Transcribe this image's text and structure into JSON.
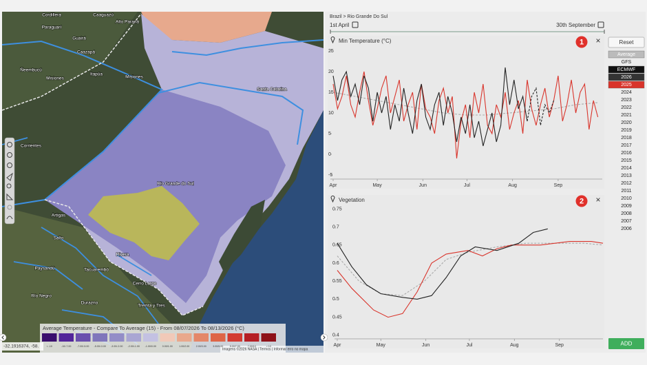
{
  "map": {
    "places": [
      "Cordillera",
      "Caaguazú",
      "Alto Paraná",
      "Paraguarí",
      "Guairá",
      "Caazapá",
      "Ñeembucú",
      "Misiones",
      "Itapúa",
      "Misiones",
      "Santa Catarina",
      "Corrientes",
      "Rio Grande do Sul",
      "Artigas",
      "Salto",
      "Rivera",
      "Paysandú",
      "Tacuarembó",
      "Cerro Largo",
      "Río Negro",
      "Durazno",
      "Treinta y Tres"
    ],
    "legend": {
      "title": "Average Temperature - Compare To Average (15) - From 08/07/2026 To 08/13/2026 (°C)",
      "bins": [
        "< -10",
        "-10/-7.00",
        "-7.00/-5.00",
        "-5.00/-3.00",
        "-3.00/-2.00",
        "-2.00/-1.00",
        "-1.00/0.00",
        "0.00/1.00",
        "1.00/2.00",
        "2.00/3.00",
        "3.00/5.00",
        "5.00/7.00",
        "7.00/10",
        "> 10"
      ],
      "colors": [
        "#3a0f6e",
        "#52259a",
        "#6a4fae",
        "#8076bb",
        "#938dc7",
        "#a9a6d3",
        "#c3c1e2",
        "#f1c9b8",
        "#e9a88c",
        "#e48769",
        "#de6548",
        "#d33a31",
        "#b51e25",
        "#8e1119"
      ]
    },
    "coordinates": "-32.1916374, -58.",
    "attribution": "Imagens ©2026 NASA | Termos | Informar erro no mapa"
  },
  "panel": {
    "breadcrumb": "Brazil > Rio Grande Do Sul",
    "start_date": "1st April",
    "end_date": "30th September",
    "close": "×"
  },
  "charts": [
    {
      "type": "line",
      "title": "Min Temperature (°C)",
      "marker": 1,
      "xlim": [
        0,
        183
      ],
      "xticks": [
        {
          "value": 0,
          "label": "Apr"
        },
        {
          "value": 30,
          "label": "May"
        },
        {
          "value": 61,
          "label": "Jun"
        },
        {
          "value": 91,
          "label": "Jul"
        },
        {
          "value": 122,
          "label": "Aug"
        },
        {
          "value": 153,
          "label": "Sep"
        }
      ],
      "ylim": [
        -6,
        27
      ],
      "yticks": [
        -5,
        0,
        5,
        10,
        15,
        20,
        25
      ],
      "series": [
        {
          "color": "#aaaaaa",
          "dash": true,
          "x": [
            0,
            15,
            30,
            45,
            60,
            75,
            90,
            105,
            120,
            135,
            150,
            165,
            180
          ],
          "values": [
            15,
            14,
            13,
            12,
            11,
            10,
            9.5,
            9.5,
            10,
            10.5,
            11,
            12,
            12.5
          ]
        },
        {
          "color": "#d9342b",
          "dash": false,
          "x": [
            0,
            3,
            6,
            9,
            12,
            15,
            18,
            21,
            24,
            27,
            30,
            33,
            36,
            39,
            42,
            45,
            48,
            51,
            54,
            57,
            60,
            63,
            66,
            69,
            72,
            75,
            78,
            81,
            84,
            87,
            90,
            93,
            96,
            99,
            102,
            105,
            108,
            111,
            114,
            117,
            120,
            123,
            126,
            129,
            132,
            135,
            138,
            141,
            144,
            147,
            150,
            153,
            156,
            159,
            162,
            165,
            168,
            171,
            174,
            177,
            180
          ],
          "values": [
            17,
            11,
            14,
            19,
            12,
            9,
            15,
            20,
            13,
            7,
            11,
            16,
            19,
            10,
            14,
            18,
            8,
            12,
            15,
            6,
            17,
            11,
            9,
            5,
            13,
            16,
            10,
            14,
            -1,
            8,
            12,
            4,
            15,
            10,
            17,
            7,
            5,
            12,
            9,
            15,
            6,
            10,
            13,
            5,
            18,
            11,
            7,
            12,
            16,
            9,
            13,
            19,
            8,
            12,
            18,
            10,
            15,
            17,
            6,
            13,
            9
          ]
        },
        {
          "color": "#222222",
          "dash": false,
          "x": [
            0,
            3,
            6,
            9,
            12,
            15,
            18,
            21,
            24,
            27,
            30,
            33,
            36,
            39,
            42,
            45,
            48,
            51,
            54,
            57,
            60,
            63,
            66,
            69,
            72,
            75,
            78,
            81,
            84,
            87,
            90,
            93,
            96,
            99,
            102,
            105,
            108,
            111,
            114,
            117,
            120,
            123,
            126,
            129,
            132
          ],
          "values": [
            19,
            13,
            18,
            20,
            14,
            17,
            12,
            19,
            16,
            8,
            15,
            10,
            14,
            6,
            12,
            8,
            16,
            10,
            5,
            13,
            17,
            9,
            6,
            12,
            15,
            7,
            14,
            10,
            3,
            9,
            5,
            12,
            4,
            8,
            2,
            6,
            10,
            3,
            7,
            21,
            12,
            18,
            11,
            14,
            8
          ]
        },
        {
          "color": "#222222",
          "dash": true,
          "x": [
            132,
            135,
            138,
            141,
            144,
            147,
            150
          ],
          "values": [
            8,
            14,
            16,
            7,
            12,
            10,
            13
          ]
        }
      ]
    },
    {
      "type": "line",
      "title": "Vegetation",
      "marker": 2,
      "xlim": [
        0,
        183
      ],
      "xticks": [
        {
          "value": 0,
          "label": "Apr"
        },
        {
          "value": 30,
          "label": "May"
        },
        {
          "value": 61,
          "label": "Jun"
        },
        {
          "value": 91,
          "label": "Jul"
        },
        {
          "value": 122,
          "label": "Aug"
        },
        {
          "value": 153,
          "label": "Sep"
        }
      ],
      "ylim": [
        0.39,
        0.77
      ],
      "yticks": [
        0.4,
        0.45,
        0.5,
        0.55,
        0.6,
        0.65,
        0.7,
        0.75
      ],
      "series": [
        {
          "color": "#aaaaaa",
          "dash": true,
          "x": [
            0,
            15,
            30,
            45,
            60,
            75,
            90,
            110,
            130,
            150,
            170,
            183
          ],
          "values": [
            0.62,
            0.55,
            0.515,
            0.51,
            0.55,
            0.61,
            0.63,
            0.645,
            0.655,
            0.655,
            0.655,
            0.65
          ]
        },
        {
          "color": "#d9342b",
          "dash": false,
          "x": [
            0,
            10,
            25,
            35,
            45,
            55,
            65,
            75,
            90,
            100,
            110,
            120,
            140,
            160,
            175,
            183
          ],
          "values": [
            0.58,
            0.53,
            0.47,
            0.45,
            0.46,
            0.52,
            0.6,
            0.625,
            0.635,
            0.62,
            0.64,
            0.65,
            0.65,
            0.66,
            0.66,
            0.655
          ]
        },
        {
          "color": "#222222",
          "dash": false,
          "x": [
            0,
            10,
            20,
            30,
            45,
            55,
            65,
            75,
            85,
            95,
            110,
            125,
            135,
            145
          ],
          "values": [
            0.655,
            0.59,
            0.54,
            0.515,
            0.505,
            0.5,
            0.51,
            0.56,
            0.62,
            0.645,
            0.635,
            0.655,
            0.685,
            0.695
          ]
        }
      ]
    }
  ],
  "sidebar": {
    "reset": "Reset",
    "items": [
      "Average",
      "GFS",
      "ECMWF",
      "2026",
      "2025",
      "2024",
      "2023",
      "2022",
      "2021",
      "2020",
      "2019",
      "2018",
      "2017",
      "2016",
      "2015",
      "2014",
      "2013",
      "2012",
      "2011",
      "2010",
      "2009",
      "2008",
      "2007",
      "2006"
    ],
    "add": "ADD"
  }
}
